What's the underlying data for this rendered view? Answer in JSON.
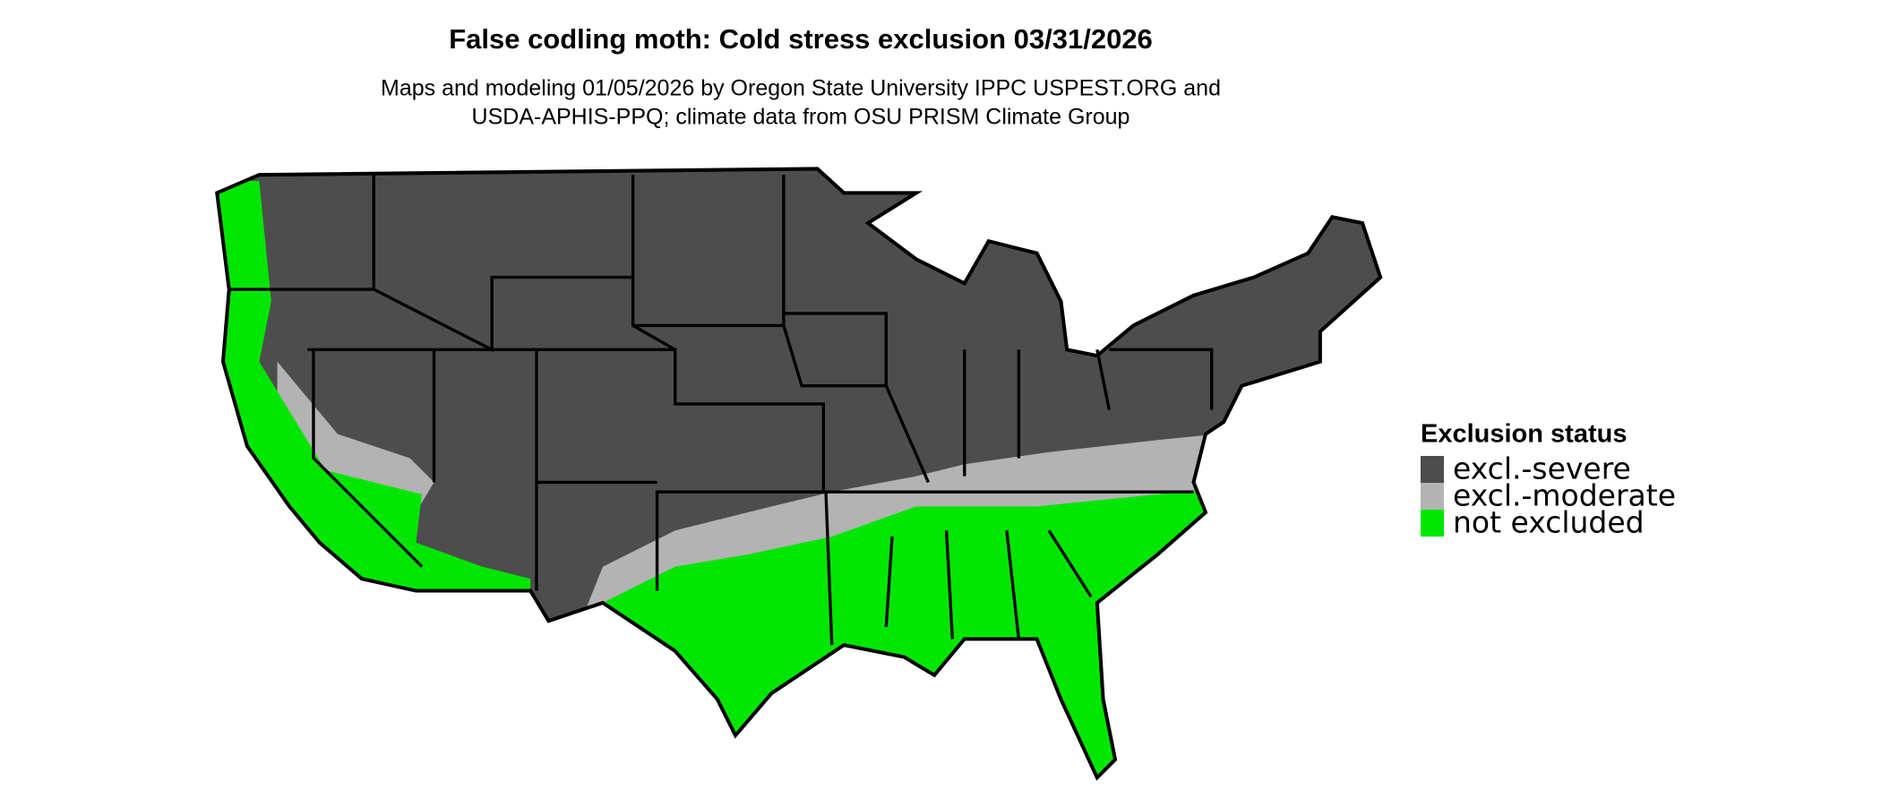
{
  "header": {
    "title": "False codling moth: Cold stress exclusion 03/31/2026",
    "subtitle": [
      "Maps and modeling 01/05/2026 by Oregon State University IPPC USPEST.ORG and",
      "USDA-APHIS-PPQ; climate data from OSU PRISM Climate Group"
    ]
  },
  "legend": {
    "title": "Exclusion status",
    "items": [
      {
        "label": "excl.-severe",
        "color": "#4d4d4d"
      },
      {
        "label": "excl.-moderate",
        "color": "#b3b3b3"
      },
      {
        "label": "not excluded",
        "color": "#00e600"
      }
    ]
  }
}
